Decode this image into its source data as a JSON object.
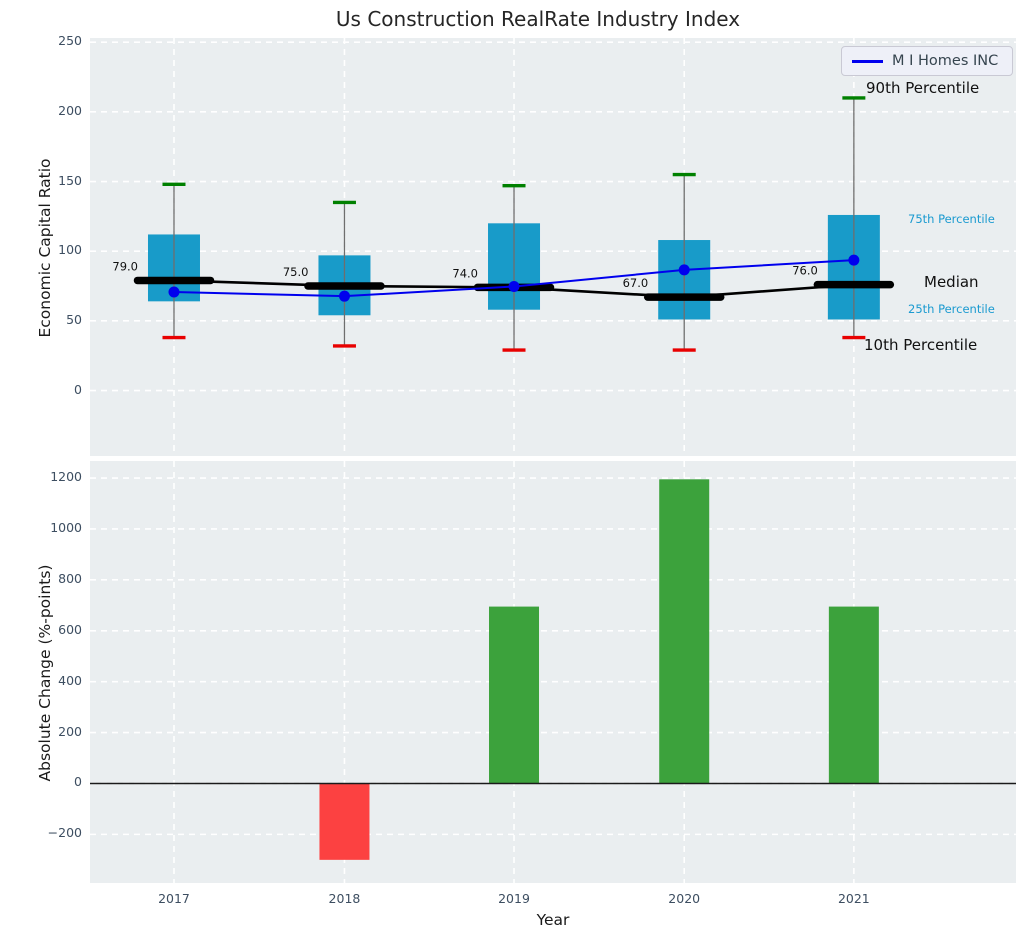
{
  "title": "Us Construction RealRate Industry Index",
  "colors": {
    "plot_bg": "#eaeef0",
    "grid": "#ffffff",
    "box_fill": "#189bc9",
    "company_line": "#0000ee",
    "median_line": "#000000",
    "p90_cap": "#008000",
    "p10_cap": "#e80000",
    "whisker": "#6e6e6e",
    "bar_positive": "#3ca23c",
    "bar_negative": "#fc4141",
    "zero_line": "#1a1a1a",
    "tick_label": "#3d4e61",
    "percentile_label_blue": "#1a9ad0",
    "annotation_text": "#111111"
  },
  "chart_data": [
    {
      "type": "boxplot+line",
      "title": "Us Construction RealRate Industry Index",
      "ylabel": "Economic Capital Ratio",
      "ylim": [
        -47,
        253
      ],
      "yticks": [
        0,
        50,
        100,
        150,
        200,
        250
      ],
      "grid": true,
      "categories": [
        "2017",
        "2018",
        "2019",
        "2020",
        "2021"
      ],
      "legend": [
        "M I Homes INC"
      ],
      "legend_position": "upper right",
      "series": {
        "company": {
          "name": "M I Homes INC",
          "values": [
            70.7,
            67.7,
            74.65,
            86.6,
            93.55
          ]
        },
        "median": {
          "name": "Median",
          "values": [
            79.0,
            75.0,
            74.0,
            67.0,
            76.0
          ]
        },
        "p25": {
          "name": "25th Percentile",
          "values": [
            64,
            54,
            58,
            51,
            51
          ]
        },
        "p75": {
          "name": "75th Percentile",
          "values": [
            112,
            97,
            120,
            108,
            126
          ]
        },
        "p10": {
          "name": "10th Percentile",
          "values": [
            38,
            32,
            29,
            29,
            38
          ]
        },
        "p90": {
          "name": "90th Percentile",
          "values": [
            148,
            135,
            147,
            155,
            210
          ]
        }
      },
      "median_annotations": [
        "79.0",
        "75.0",
        "74.0",
        "67.0",
        "76.0"
      ],
      "side_labels": {
        "p90": "90th Percentile",
        "p75": "75th Percentile",
        "median": "Median",
        "p25": "25th Percentile",
        "p10": "10th Percentile"
      }
    },
    {
      "type": "bar",
      "ylabel": "Absolute Change (%-points)",
      "xlabel": "Year",
      "ylim": [
        -391,
        1267
      ],
      "yticks": [
        -200,
        0,
        200,
        400,
        600,
        800,
        1000,
        1200
      ],
      "grid": true,
      "categories": [
        "2017",
        "2018",
        "2019",
        "2020",
        "2021"
      ],
      "values": [
        null,
        -300,
        695,
        1195,
        695
      ]
    }
  ]
}
